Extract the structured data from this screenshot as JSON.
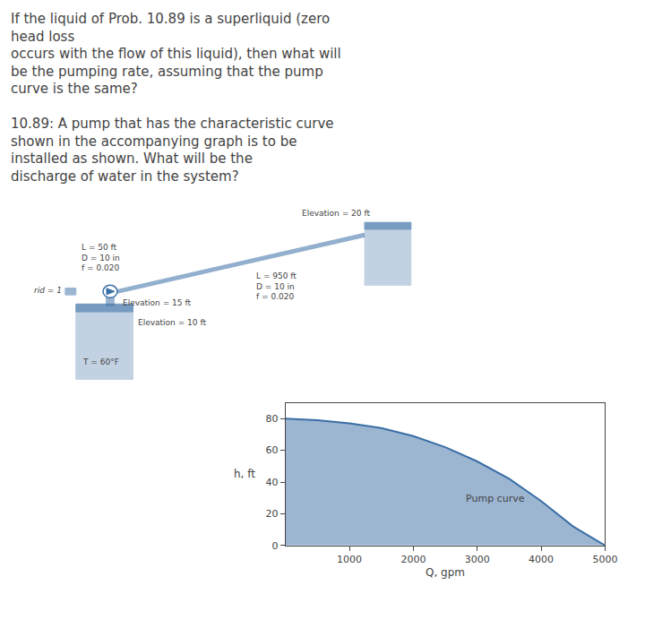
{
  "chart_data": {
    "type": "area",
    "title": "If the liquid of Prob. 10.89 is a superliquid (zero\nhead loss\noccurs with the flow of this liquid), then what will\nbe the pumping rate, assuming that the pump\ncurve is the same?",
    "subtitle": "10.89: A pump that has the characteristic curve\nshown in the accompanying graph is to be\ninstalled as shown. What will be the\ndischarge of water in the system?",
    "x": [
      0,
      500,
      1000,
      1500,
      2000,
      2500,
      3000,
      3500,
      4000,
      4500,
      5000
    ],
    "values": [
      80,
      79,
      77,
      74,
      69,
      62,
      53,
      42,
      28,
      12,
      0
    ],
    "color": "#3a6ea5",
    "xlim": [
      0,
      5000
    ],
    "ylim": [
      0,
      90
    ],
    "xticks": [
      1000,
      2000,
      3000,
      4000,
      5000
    ],
    "yticks": [
      0,
      20,
      40,
      60,
      80
    ],
    "xlabel": "Q, gpm",
    "ylabel": "h, ft",
    "grid": false,
    "annotations": [
      {
        "text": "Pump curve",
        "x": 2800,
        "y": 25
      },
      {
        "text": "T = 60°F"
      },
      {
        "text": "rid = 1"
      },
      {
        "text": "L = 50 ft\nD = 10 in\nf = 0.020"
      },
      {
        "text": "Elevation = 15 ft"
      },
      {
        "text": "Elevation = 10 ft"
      },
      {
        "text": "Elevation = 20 ft"
      },
      {
        "text": "L = 950 ft\nD = 10 in\nf = 0.020"
      }
    ]
  }
}
